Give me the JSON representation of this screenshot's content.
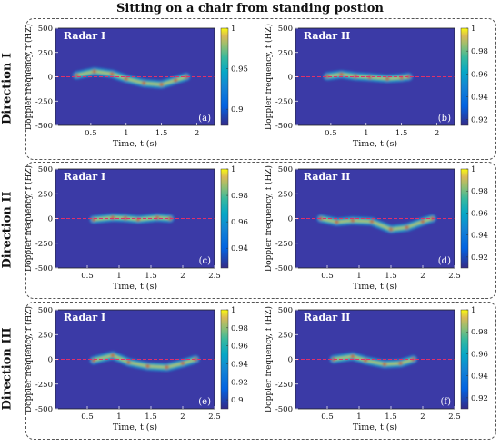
{
  "figure_title": "Sitting on a chair from standing postion",
  "row_labels": [
    "Direction I",
    "Direction II",
    "Direction III"
  ],
  "panel_defaults": {
    "ylabel": "Doppler frequency, f (HZ)",
    "xlabel": "Time, t (s)",
    "yticks": [
      500,
      250,
      0,
      -250,
      -500
    ],
    "ylim": [
      -500,
      500
    ],
    "background_color": "#3b3aa6",
    "zero_line_color": "#e0306b"
  },
  "chart_data": [
    {
      "type": "heatmap",
      "id": "a",
      "legend": "Radar I",
      "panel_letter": "(a)",
      "xlim": [
        0,
        2.25
      ],
      "xticks": [
        0.5,
        1,
        1.5,
        2
      ],
      "colorbar_ticks": [
        1,
        0.95,
        0.9
      ],
      "colorbar_range": [
        0.88,
        1
      ],
      "signature": [
        {
          "t": 0.3,
          "f": 15
        },
        {
          "t": 0.55,
          "f": 55
        },
        {
          "t": 0.8,
          "f": 30
        },
        {
          "t": 1.0,
          "f": -20
        },
        {
          "t": 1.25,
          "f": -65
        },
        {
          "t": 1.5,
          "f": -80
        },
        {
          "t": 1.7,
          "f": -35
        },
        {
          "t": 1.85,
          "f": 0
        }
      ]
    },
    {
      "type": "heatmap",
      "id": "b",
      "legend": "Radar II",
      "panel_letter": "(b)",
      "xlim": [
        0,
        2.25
      ],
      "xticks": [
        0.5,
        1,
        1.5,
        2
      ],
      "colorbar_ticks": [
        1,
        0.98,
        0.96,
        0.94,
        0.92
      ],
      "colorbar_range": [
        0.915,
        1
      ],
      "signature": [
        {
          "t": 0.45,
          "f": 5
        },
        {
          "t": 0.65,
          "f": 25
        },
        {
          "t": 0.85,
          "f": 5
        },
        {
          "t": 1.05,
          "f": -5
        },
        {
          "t": 1.3,
          "f": -20
        },
        {
          "t": 1.5,
          "f": -10
        },
        {
          "t": 1.6,
          "f": 0
        }
      ]
    },
    {
      "type": "heatmap",
      "id": "c",
      "legend": "Radar I",
      "panel_letter": "(c)",
      "xlim": [
        0,
        2.5
      ],
      "xticks": [
        0.5,
        1,
        1.5,
        2,
        2.5
      ],
      "colorbar_ticks": [
        1,
        0.98,
        0.96,
        0.94
      ],
      "colorbar_range": [
        0.925,
        1
      ],
      "signature": [
        {
          "t": 0.6,
          "f": -10
        },
        {
          "t": 0.9,
          "f": 10
        },
        {
          "t": 1.1,
          "f": 5
        },
        {
          "t": 1.3,
          "f": -10
        },
        {
          "t": 1.6,
          "f": 10
        },
        {
          "t": 1.8,
          "f": 0
        }
      ]
    },
    {
      "type": "heatmap",
      "id": "d",
      "legend": "Radar II",
      "panel_letter": "(d)",
      "xlim": [
        0,
        2.5
      ],
      "xticks": [
        0.5,
        1,
        1.5,
        2,
        2.5
      ],
      "colorbar_ticks": [
        1,
        0.98,
        0.96,
        0.94,
        0.92
      ],
      "colorbar_range": [
        0.91,
        1
      ],
      "signature": [
        {
          "t": 0.4,
          "f": 0
        },
        {
          "t": 0.65,
          "f": -35
        },
        {
          "t": 0.9,
          "f": -20
        },
        {
          "t": 1.2,
          "f": -30
        },
        {
          "t": 1.5,
          "f": -110
        },
        {
          "t": 1.75,
          "f": -90
        },
        {
          "t": 2.0,
          "f": -30
        },
        {
          "t": 2.15,
          "f": 0
        }
      ]
    },
    {
      "type": "heatmap",
      "id": "e",
      "legend": "Radar I",
      "panel_letter": "(e)",
      "xlim": [
        0,
        2.5
      ],
      "xticks": [
        0.5,
        1,
        1.5,
        2,
        2.5
      ],
      "colorbar_ticks": [
        1,
        0.98,
        0.96,
        0.94,
        0.92,
        0.9
      ],
      "colorbar_range": [
        0.89,
        1
      ],
      "signature": [
        {
          "t": 0.6,
          "f": -10
        },
        {
          "t": 0.9,
          "f": 40
        },
        {
          "t": 1.15,
          "f": -30
        },
        {
          "t": 1.45,
          "f": -70
        },
        {
          "t": 1.75,
          "f": -80
        },
        {
          "t": 2.0,
          "f": -40
        },
        {
          "t": 2.2,
          "f": 0
        }
      ]
    },
    {
      "type": "heatmap",
      "id": "f",
      "legend": "Radar II",
      "panel_letter": "(f)",
      "xlim": [
        0,
        2.5
      ],
      "xticks": [
        0.5,
        1,
        1.5,
        2,
        2.5
      ],
      "colorbar_ticks": [
        1,
        0.98,
        0.96,
        0.94,
        0.92
      ],
      "colorbar_range": [
        0.91,
        1
      ],
      "signature": [
        {
          "t": 0.6,
          "f": 0
        },
        {
          "t": 0.9,
          "f": 30
        },
        {
          "t": 1.1,
          "f": -10
        },
        {
          "t": 1.4,
          "f": -50
        },
        {
          "t": 1.65,
          "f": -40
        },
        {
          "t": 1.85,
          "f": 0
        }
      ]
    }
  ]
}
